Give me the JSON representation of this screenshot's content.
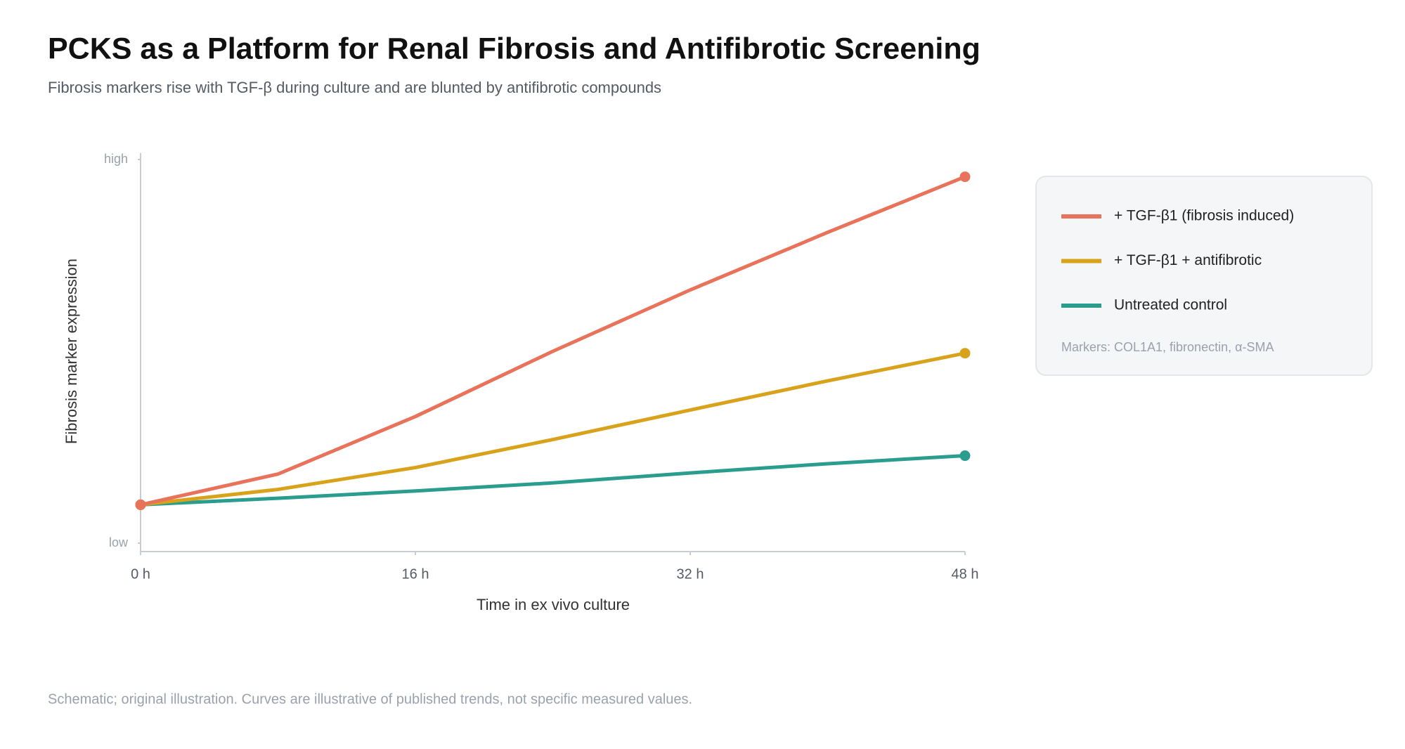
{
  "chart_data": {
    "type": "line",
    "title": "PCKS as a Platform for Renal Fibrosis and Antifibrotic Screening",
    "subtitle": "Fibrosis markers rise with TGF-β during culture and are blunted by antifibrotic compounds",
    "x_label": "Time in ex vivo culture",
    "y_label": "Fibrosis marker expression",
    "x": [
      0,
      8,
      16,
      24,
      32,
      40,
      48
    ],
    "xlim": [
      0,
      48
    ],
    "xticks": [
      {
        "value": 0,
        "label": "0 h"
      },
      {
        "value": 16,
        "label": "16 h"
      },
      {
        "value": 32,
        "label": "32 h"
      },
      {
        "value": 48,
        "label": "48 h"
      }
    ],
    "ylim": [
      0,
      100
    ],
    "yticks": [
      {
        "value": 0,
        "label": "low"
      },
      {
        "value": 100,
        "label": "high"
      }
    ],
    "series": [
      {
        "name": "+ TGF-β1 (fibrosis induced)",
        "color": "#e8735a",
        "values": [
          10,
          18,
          33,
          50,
          66,
          81,
          95.5
        ]
      },
      {
        "name": "+ TGF-β1 + antifibrotic",
        "color": "#d9a21b",
        "values": [
          10,
          14,
          19.7,
          27,
          34.7,
          42.3,
          49.5
        ]
      },
      {
        "name": "Untreated control",
        "color": "#2a9d8f",
        "values": [
          10,
          11.7,
          13.6,
          15.7,
          18.3,
          20.7,
          22.8
        ]
      }
    ],
    "legend_note": "Markers: COL1A1, fibronectin, α-SMA",
    "footnote": "Schematic; original illustration. Curves are illustrative of published trends, not specific measured values."
  }
}
